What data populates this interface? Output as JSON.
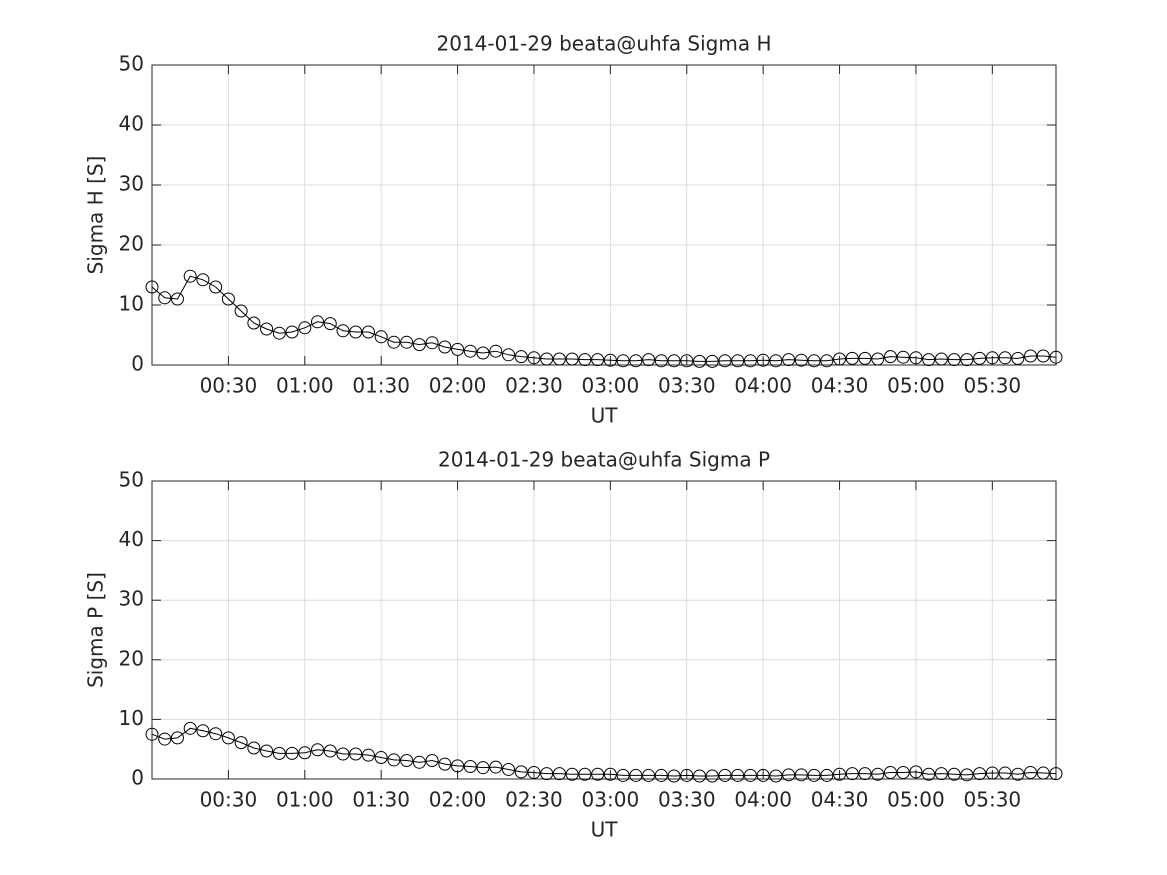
{
  "chart_data": [
    {
      "type": "line",
      "title": "2014-01-29  beata@uhfa Sigma H",
      "xlabel": "UT",
      "ylabel": "Sigma H [S]",
      "x": [
        "00:00",
        "00:05",
        "00:10",
        "00:15",
        "00:20",
        "00:25",
        "00:30",
        "00:35",
        "00:40",
        "00:45",
        "00:50",
        "00:55",
        "01:00",
        "01:05",
        "01:10",
        "01:15",
        "01:20",
        "01:25",
        "01:30",
        "01:35",
        "01:40",
        "01:45",
        "01:50",
        "01:55",
        "02:00",
        "02:05",
        "02:10",
        "02:15",
        "02:20",
        "02:25",
        "02:30",
        "02:35",
        "02:40",
        "02:45",
        "02:50",
        "02:55",
        "03:00",
        "03:05",
        "03:10",
        "03:15",
        "03:20",
        "03:25",
        "03:30",
        "03:35",
        "03:40",
        "03:45",
        "03:50",
        "03:55",
        "04:00",
        "04:05",
        "04:10",
        "04:15",
        "04:20",
        "04:25",
        "04:30",
        "04:35",
        "04:40",
        "04:45",
        "04:50",
        "04:55",
        "05:00",
        "05:05",
        "05:10",
        "05:15",
        "05:20",
        "05:25",
        "05:30",
        "05:35",
        "05:40",
        "05:45",
        "05:50",
        "05:55"
      ],
      "series": [
        {
          "color": "#000000",
          "values": [
            13,
            11.2,
            11,
            14.8,
            14.2,
            13,
            11,
            9,
            7,
            6,
            5.3,
            5.5,
            6.2,
            7.2,
            6.9,
            5.7,
            5.5,
            5.5,
            4.7,
            3.8,
            3.8,
            3.4,
            3.7,
            3,
            2.6,
            2.3,
            2,
            2.3,
            1.7,
            1.4,
            1.2,
            1,
            1,
            1,
            0.9,
            0.9,
            0.8,
            0.7,
            0.7,
            0.9,
            0.7,
            0.7,
            0.7,
            0.6,
            0.6,
            0.7,
            0.7,
            0.7,
            0.8,
            0.7,
            0.9,
            0.8,
            0.7,
            0.7,
            1,
            1.1,
            1.1,
            1,
            1.4,
            1.3,
            1.2,
            0.9,
            1,
            0.9,
            0.9,
            1.1,
            1.2,
            1.2,
            1.1,
            1.5,
            1.5,
            1.3
          ]
        }
      ],
      "xlim": [
        "00:00",
        "05:55"
      ],
      "xticks": [
        "00:30",
        "01:00",
        "01:30",
        "02:00",
        "02:30",
        "03:00",
        "03:30",
        "04:00",
        "04:30",
        "05:00",
        "05:30"
      ],
      "ylim": [
        0,
        50
      ],
      "yticks": [
        0,
        10,
        20,
        30,
        40,
        50
      ],
      "grid": true,
      "marker": "o"
    },
    {
      "type": "line",
      "title": "2014-01-29  beata@uhfa Sigma P",
      "xlabel": "UT",
      "ylabel": "Sigma P [S]",
      "x": [
        "00:00",
        "00:05",
        "00:10",
        "00:15",
        "00:20",
        "00:25",
        "00:30",
        "00:35",
        "00:40",
        "00:45",
        "00:50",
        "00:55",
        "01:00",
        "01:05",
        "01:10",
        "01:15",
        "01:20",
        "01:25",
        "01:30",
        "01:35",
        "01:40",
        "01:45",
        "01:50",
        "01:55",
        "02:00",
        "02:05",
        "02:10",
        "02:15",
        "02:20",
        "02:25",
        "02:30",
        "02:35",
        "02:40",
        "02:45",
        "02:50",
        "02:55",
        "03:00",
        "03:05",
        "03:10",
        "03:15",
        "03:20",
        "03:25",
        "03:30",
        "03:35",
        "03:40",
        "03:45",
        "03:50",
        "03:55",
        "04:00",
        "04:05",
        "04:10",
        "04:15",
        "04:20",
        "04:25",
        "04:30",
        "04:35",
        "04:40",
        "04:45",
        "04:50",
        "04:55",
        "05:00",
        "05:05",
        "05:10",
        "05:15",
        "05:20",
        "05:25",
        "05:30",
        "05:35",
        "05:40",
        "05:45",
        "05:50",
        "05:55"
      ],
      "series": [
        {
          "color": "#000000",
          "values": [
            7.5,
            6.7,
            6.9,
            8.5,
            8.1,
            7.6,
            6.9,
            6.1,
            5.2,
            4.7,
            4.3,
            4.3,
            4.4,
            4.9,
            4.7,
            4.2,
            4.2,
            4.0,
            3.6,
            3.2,
            3.1,
            2.8,
            3.1,
            2.5,
            2.2,
            2.1,
            1.9,
            2.0,
            1.6,
            1.2,
            1.1,
            0.9,
            0.9,
            0.8,
            0.8,
            0.8,
            0.8,
            0.6,
            0.6,
            0.6,
            0.6,
            0.5,
            0.6,
            0.5,
            0.5,
            0.6,
            0.6,
            0.6,
            0.6,
            0.5,
            0.7,
            0.7,
            0.6,
            0.6,
            0.8,
            0.9,
            0.9,
            0.8,
            1.1,
            1.1,
            1.2,
            0.8,
            0.9,
            0.8,
            0.7,
            0.9,
            1.0,
            1.0,
            0.8,
            1.1,
            1.0,
            0.9
          ]
        }
      ],
      "xlim": [
        "00:00",
        "05:55"
      ],
      "xticks": [
        "00:30",
        "01:00",
        "01:30",
        "02:00",
        "02:30",
        "03:00",
        "03:30",
        "04:00",
        "04:30",
        "05:00",
        "05:30"
      ],
      "ylim": [
        0,
        50
      ],
      "yticks": [
        0,
        10,
        20,
        30,
        40,
        50
      ],
      "grid": true,
      "marker": "o"
    }
  ]
}
